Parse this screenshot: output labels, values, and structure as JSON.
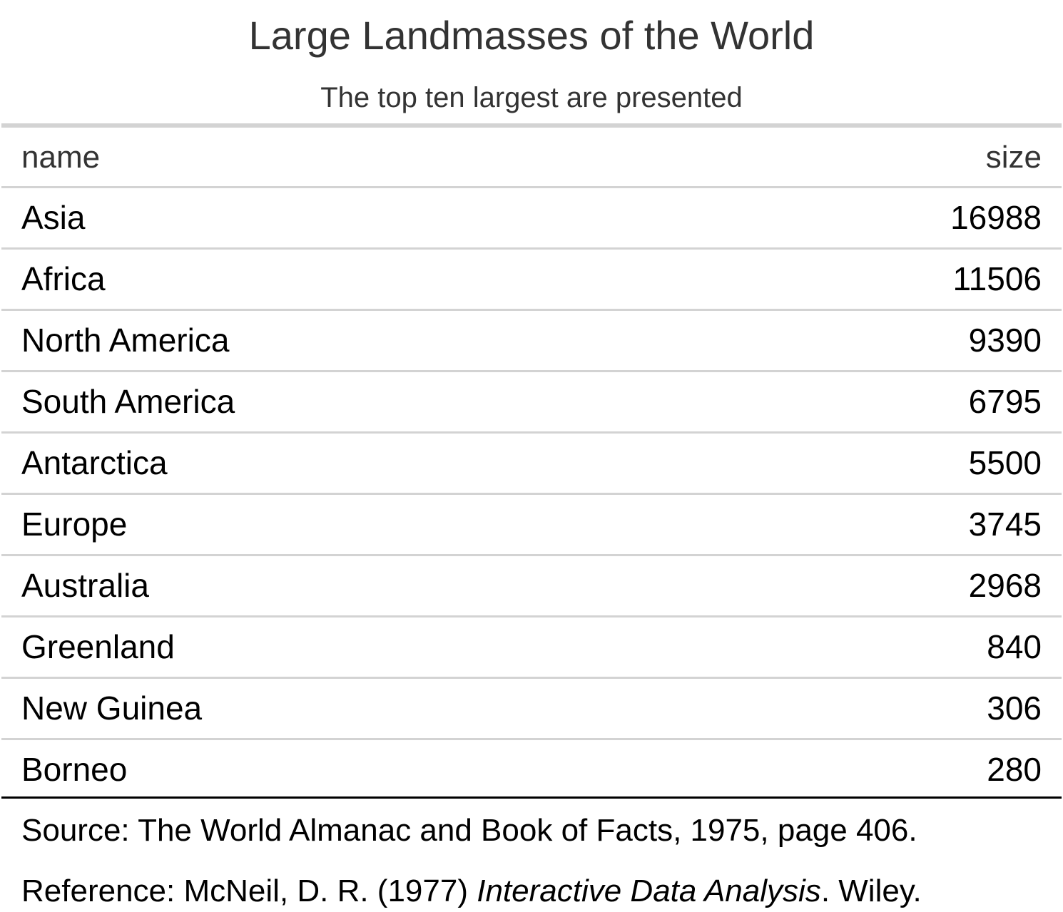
{
  "chart_data": {
    "type": "table",
    "title": "Large Landmasses of the World",
    "subtitle": "The top ten largest are presented",
    "columns": [
      "name",
      "size"
    ],
    "rows": [
      {
        "name": "Asia",
        "size": 16988
      },
      {
        "name": "Africa",
        "size": 11506
      },
      {
        "name": "North America",
        "size": 9390
      },
      {
        "name": "South America",
        "size": 6795
      },
      {
        "name": "Antarctica",
        "size": 5500
      },
      {
        "name": "Europe",
        "size": 3745
      },
      {
        "name": "Australia",
        "size": 2968
      },
      {
        "name": "Greenland",
        "size": 840
      },
      {
        "name": "New Guinea",
        "size": 306
      },
      {
        "name": "Borneo",
        "size": 280
      }
    ],
    "source_note": "Source: The World Almanac and Book of Facts, 1975, page 406.",
    "reference_note": {
      "prefix": "Reference: McNeil, D. R. (1977) ",
      "italic": "Interactive Data Analysis",
      "suffix": ". Wiley."
    }
  },
  "colors": {
    "rule": "#d3d3d3",
    "bottom_rule": "#000000",
    "header_text": "#333333"
  }
}
